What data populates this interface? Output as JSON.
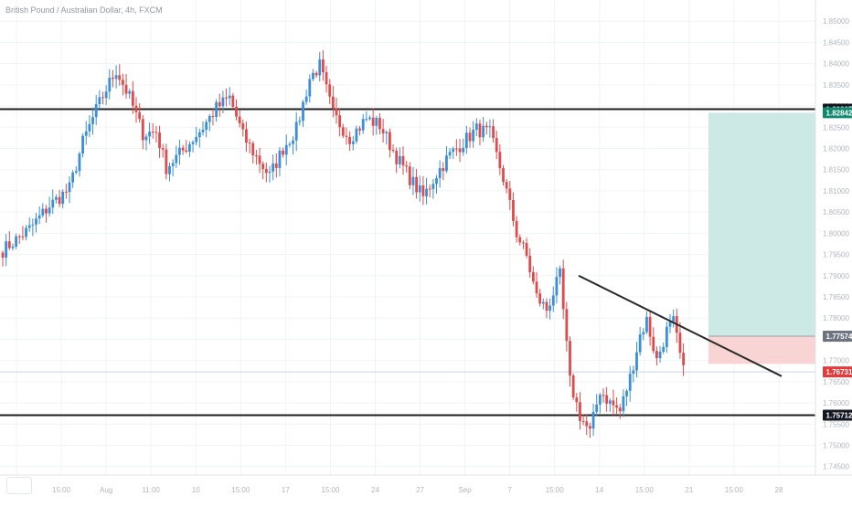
{
  "header": {
    "symbol_title": "British Pound / Australian Dollar, 4h, FXCM"
  },
  "colors": {
    "up_candle": "#3a8fd8",
    "down_candle": "#e04a4a",
    "grid": "#f0f3f7",
    "horizontal_line": "#1f1f1f",
    "trendline": "#2a2a2a",
    "target_zone": "#cde9e5",
    "stop_zone": "#f9d4d4",
    "price_marker_green": "#0f8a6e",
    "price_marker_red": "#e5393a",
    "price_marker_gray": "#6e7380",
    "price_marker_dark": "#131722"
  },
  "chart_data": {
    "type": "candlestick",
    "title": "British Pound / Australian Dollar, 4h, FXCM",
    "ylim": [
      1.743,
      1.855
    ],
    "y_ticks": [
      1.745,
      1.75,
      1.755,
      1.76,
      1.765,
      1.77,
      1.775,
      1.78,
      1.785,
      1.79,
      1.795,
      1.8,
      1.805,
      1.81,
      1.815,
      1.82,
      1.825,
      1.83,
      1.835,
      1.84,
      1.845,
      1.85
    ],
    "x_tick_labels": [
      "27",
      "15:00",
      "Aug",
      "11:00",
      "10",
      "15:00",
      "17",
      "15:00",
      "24",
      "27",
      "Sep",
      "7",
      "15:00",
      "14",
      "15:00",
      "21",
      "15:00",
      "28"
    ],
    "grid": true,
    "horizontal_levels": [
      1.82927,
      1.75712
    ],
    "trendline": {
      "start": 1.79,
      "end": 1.7663
    },
    "position_tool": {
      "entry": 1.77574,
      "target": 1.82842,
      "stop": 1.7692
    },
    "price_labels": [
      {
        "value": 1.82927,
        "text": "1.82927",
        "kind": "dark"
      },
      {
        "value": 1.82842,
        "text": "1.82842",
        "kind": "green"
      },
      {
        "value": 1.77574,
        "text": "1.77574",
        "kind": "gray"
      },
      {
        "value": 1.76731,
        "text": "1.76731",
        "kind": "red"
      },
      {
        "value": 1.75712,
        "text": "1.75712",
        "kind": "dark"
      }
    ],
    "candle_count": 205,
    "waypoints": [
      [
        0,
        1.796
      ],
      [
        8,
        1.801
      ],
      [
        14,
        1.8065
      ],
      [
        20,
        1.8105
      ],
      [
        24,
        1.8215
      ],
      [
        28,
        1.829
      ],
      [
        31,
        1.834
      ],
      [
        34,
        1.8385
      ],
      [
        38,
        1.832
      ],
      [
        42,
        1.8235
      ],
      [
        46,
        1.824
      ],
      [
        49,
        1.8155
      ],
      [
        54,
        1.8195
      ],
      [
        60,
        1.825
      ],
      [
        64,
        1.8295
      ],
      [
        68,
        1.832
      ],
      [
        72,
        1.823
      ],
      [
        76,
        1.818
      ],
      [
        80,
        1.8135
      ],
      [
        84,
        1.82
      ],
      [
        88,
        1.8245
      ],
      [
        92,
        1.8365
      ],
      [
        95,
        1.8395
      ],
      [
        99,
        1.828
      ],
      [
        104,
        1.8225
      ],
      [
        109,
        1.827
      ],
      [
        113,
        1.8255
      ],
      [
        118,
        1.818
      ],
      [
        122,
        1.813
      ],
      [
        126,
        1.8085
      ],
      [
        130,
        1.814
      ],
      [
        134,
        1.8185
      ],
      [
        138,
        1.8215
      ],
      [
        142,
        1.8245
      ],
      [
        146,
        1.8235
      ],
      [
        150,
        1.813
      ],
      [
        154,
        1.8
      ],
      [
        157,
        1.7945
      ],
      [
        160,
        1.785
      ],
      [
        163,
        1.782
      ],
      [
        167,
        1.79
      ],
      [
        170,
        1.765
      ],
      [
        173,
        1.757
      ],
      [
        176,
        1.753
      ],
      [
        179,
        1.763
      ],
      [
        182,
        1.76
      ],
      [
        185,
        1.758
      ],
      [
        188,
        1.766
      ],
      [
        191,
        1.776
      ],
      [
        193,
        1.7795
      ],
      [
        196,
        1.77
      ],
      [
        199,
        1.777
      ],
      [
        201,
        1.779
      ],
      [
        204,
        1.7673
      ]
    ]
  }
}
